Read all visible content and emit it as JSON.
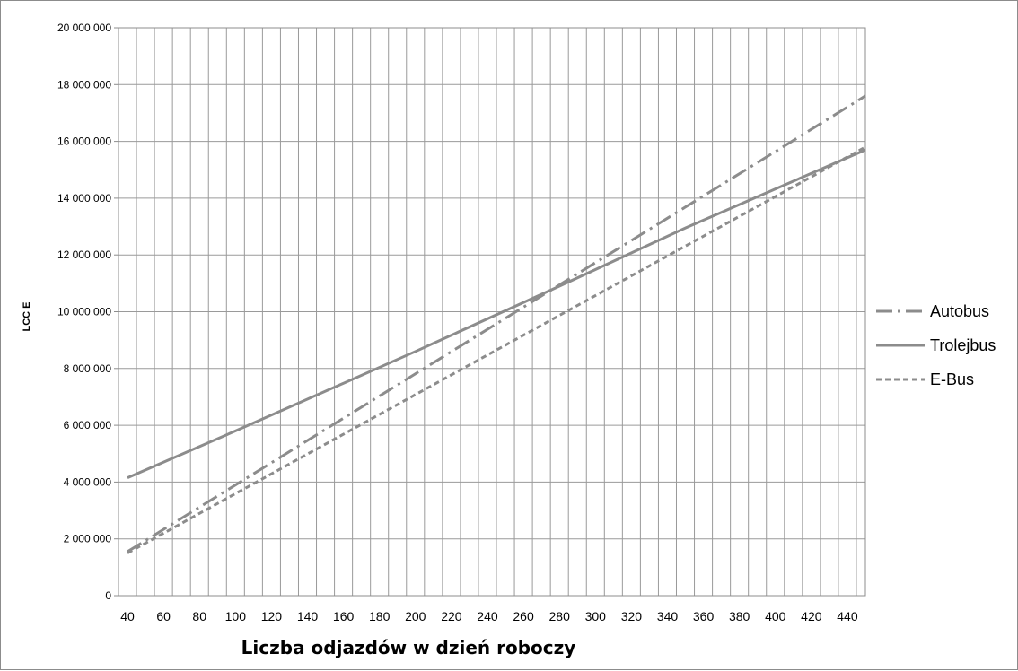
{
  "chart_data": {
    "type": "line",
    "title": "",
    "xlabel": "Liczba odjazdów w dzień roboczy",
    "ylabel": "LCC E",
    "x_ticks": [
      40,
      60,
      80,
      100,
      120,
      140,
      160,
      180,
      200,
      220,
      240,
      260,
      280,
      300,
      320,
      340,
      360,
      380,
      400,
      420,
      440
    ],
    "y_ticks": [
      0,
      2000000,
      4000000,
      6000000,
      8000000,
      10000000,
      12000000,
      14000000,
      16000000,
      18000000,
      20000000
    ],
    "y_tick_labels": [
      "0",
      "2 000 000",
      "4 000 000",
      "6 000 000",
      "8 000 000",
      "10 000 000",
      "12 000 000",
      "14 000 000",
      "16 000 000",
      "18 000 000",
      "20 000 000"
    ],
    "xlim": [
      35,
      450
    ],
    "ylim": [
      0,
      20000000
    ],
    "grid": true,
    "legend_position": "right",
    "series": [
      {
        "name": "Autobus",
        "color": "#8c8c8c",
        "dash": "dash-dot",
        "x": [
          40,
          450
        ],
        "y": [
          1550000,
          17600000
        ]
      },
      {
        "name": "Trolejbus",
        "color": "#8c8c8c",
        "dash": "solid",
        "x": [
          40,
          100,
          200,
          280,
          350,
          450
        ],
        "y": [
          4150000,
          5800000,
          8600000,
          10900000,
          12950000,
          15700000
        ]
      },
      {
        "name": "E-Bus",
        "color": "#8c8c8c",
        "dash": "dashed",
        "x": [
          40,
          450
        ],
        "y": [
          1500000,
          15800000
        ]
      }
    ]
  }
}
